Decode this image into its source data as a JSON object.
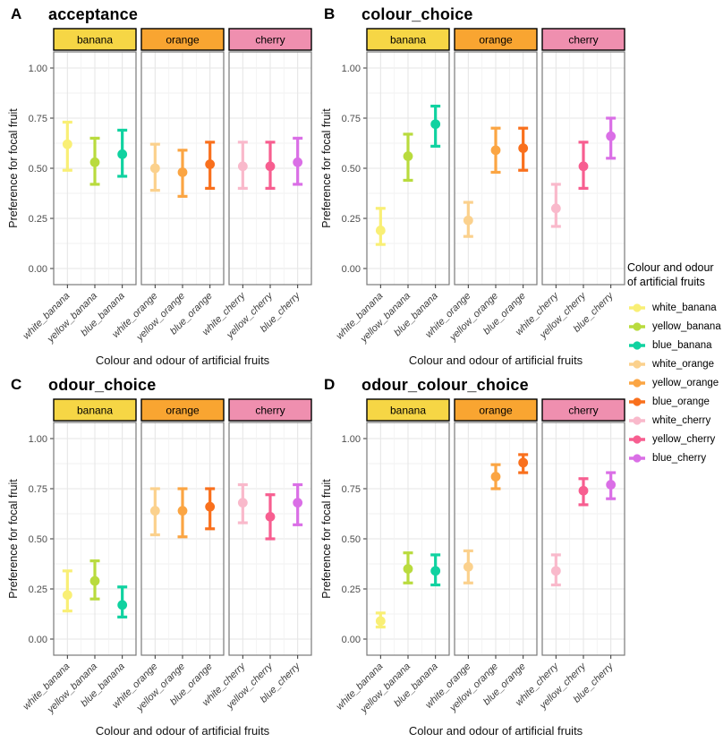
{
  "figure": {
    "xlabel": "Colour and odour of artificial fruits",
    "ylabel": "Preference for focal fruit",
    "facets": [
      "banana",
      "orange",
      "cherry"
    ],
    "facet_fills": {
      "banana": "#F6D645",
      "orange": "#F9A531",
      "cherry": "#EF8FAF"
    },
    "categories": {
      "banana": [
        "white_banana",
        "yellow_banana",
        "blue_banana"
      ],
      "orange": [
        "white_orange",
        "yellow_orange",
        "blue_orange"
      ],
      "cherry": [
        "white_cherry",
        "yellow_cherry",
        "blue_cherry"
      ]
    },
    "palette": {
      "white_banana": "#F9EF75",
      "yellow_banana": "#B9DB3E",
      "blue_banana": "#10D2A0",
      "white_orange": "#FBD18D",
      "yellow_orange": "#FBA543",
      "blue_orange": "#F9701D",
      "white_cherry": "#F9B9CB",
      "yellow_cherry": "#F75E90",
      "blue_cherry": "#DA6FE6"
    },
    "ytick_labels": [
      "0.00",
      "0.25",
      "0.50",
      "0.75",
      "1.00"
    ],
    "ytick_values": [
      0,
      0.25,
      0.5,
      0.75,
      1
    ]
  },
  "chart_data": [
    {
      "type": "pointrange",
      "letter": "A",
      "title": "acceptance",
      "xlabel": "Colour and odour of artificial fruits",
      "ylabel": "Preference for focal fruit",
      "ylim": [
        0,
        1
      ],
      "yticks": [
        "0.00",
        "0.25",
        "0.50",
        "0.75",
        "1.00"
      ],
      "facets": [
        "banana",
        "orange",
        "cherry"
      ],
      "points": [
        {
          "facet": "banana",
          "x": "white_banana",
          "y": 0.62,
          "ymin": 0.49,
          "ymax": 0.73
        },
        {
          "facet": "banana",
          "x": "yellow_banana",
          "y": 0.53,
          "ymin": 0.42,
          "ymax": 0.65
        },
        {
          "facet": "banana",
          "x": "blue_banana",
          "y": 0.57,
          "ymin": 0.46,
          "ymax": 0.69
        },
        {
          "facet": "orange",
          "x": "white_orange",
          "y": 0.5,
          "ymin": 0.39,
          "ymax": 0.62
        },
        {
          "facet": "orange",
          "x": "yellow_orange",
          "y": 0.48,
          "ymin": 0.36,
          "ymax": 0.59
        },
        {
          "facet": "orange",
          "x": "blue_orange",
          "y": 0.52,
          "ymin": 0.4,
          "ymax": 0.63
        },
        {
          "facet": "cherry",
          "x": "white_cherry",
          "y": 0.51,
          "ymin": 0.4,
          "ymax": 0.63
        },
        {
          "facet": "cherry",
          "x": "yellow_cherry",
          "y": 0.51,
          "ymin": 0.4,
          "ymax": 0.63
        },
        {
          "facet": "cherry",
          "x": "blue_cherry",
          "y": 0.53,
          "ymin": 0.42,
          "ymax": 0.65
        }
      ]
    },
    {
      "type": "pointrange",
      "letter": "B",
      "title": "colour_choice",
      "xlabel": "Colour and odour of artificial fruits",
      "ylabel": "Preference for focal fruit",
      "ylim": [
        0,
        1
      ],
      "yticks": [
        "0.00",
        "0.25",
        "0.50",
        "0.75",
        "1.00"
      ],
      "facets": [
        "banana",
        "orange",
        "cherry"
      ],
      "points": [
        {
          "facet": "banana",
          "x": "white_banana",
          "y": 0.19,
          "ymin": 0.12,
          "ymax": 0.3
        },
        {
          "facet": "banana",
          "x": "yellow_banana",
          "y": 0.56,
          "ymin": 0.44,
          "ymax": 0.67
        },
        {
          "facet": "banana",
          "x": "blue_banana",
          "y": 0.72,
          "ymin": 0.61,
          "ymax": 0.81
        },
        {
          "facet": "orange",
          "x": "white_orange",
          "y": 0.24,
          "ymin": 0.16,
          "ymax": 0.33
        },
        {
          "facet": "orange",
          "x": "yellow_orange",
          "y": 0.59,
          "ymin": 0.48,
          "ymax": 0.7
        },
        {
          "facet": "orange",
          "x": "blue_orange",
          "y": 0.6,
          "ymin": 0.49,
          "ymax": 0.7
        },
        {
          "facet": "cherry",
          "x": "white_cherry",
          "y": 0.3,
          "ymin": 0.21,
          "ymax": 0.42
        },
        {
          "facet": "cherry",
          "x": "yellow_cherry",
          "y": 0.51,
          "ymin": 0.4,
          "ymax": 0.63
        },
        {
          "facet": "cherry",
          "x": "blue_cherry",
          "y": 0.66,
          "ymin": 0.55,
          "ymax": 0.75
        }
      ]
    },
    {
      "type": "pointrange",
      "letter": "C",
      "title": "odour_choice",
      "xlabel": "Colour and odour of artificial fruits",
      "ylabel": "Preference for focal fruit",
      "ylim": [
        0,
        1
      ],
      "yticks": [
        "0.00",
        "0.25",
        "0.50",
        "0.75",
        "1.00"
      ],
      "facets": [
        "banana",
        "orange",
        "cherry"
      ],
      "points": [
        {
          "facet": "banana",
          "x": "white_banana",
          "y": 0.22,
          "ymin": 0.14,
          "ymax": 0.34
        },
        {
          "facet": "banana",
          "x": "yellow_banana",
          "y": 0.29,
          "ymin": 0.2,
          "ymax": 0.39
        },
        {
          "facet": "banana",
          "x": "blue_banana",
          "y": 0.17,
          "ymin": 0.11,
          "ymax": 0.26
        },
        {
          "facet": "orange",
          "x": "white_orange",
          "y": 0.64,
          "ymin": 0.52,
          "ymax": 0.75
        },
        {
          "facet": "orange",
          "x": "yellow_orange",
          "y": 0.64,
          "ymin": 0.51,
          "ymax": 0.75
        },
        {
          "facet": "orange",
          "x": "blue_orange",
          "y": 0.66,
          "ymin": 0.55,
          "ymax": 0.75
        },
        {
          "facet": "cherry",
          "x": "white_cherry",
          "y": 0.68,
          "ymin": 0.58,
          "ymax": 0.77
        },
        {
          "facet": "cherry",
          "x": "yellow_cherry",
          "y": 0.61,
          "ymin": 0.5,
          "ymax": 0.72
        },
        {
          "facet": "cherry",
          "x": "blue_cherry",
          "y": 0.68,
          "ymin": 0.57,
          "ymax": 0.77
        }
      ]
    },
    {
      "type": "pointrange",
      "letter": "D",
      "title": "odour_colour_choice",
      "xlabel": "Colour and odour of artificial fruits",
      "ylabel": "Preference for focal fruit",
      "ylim": [
        0,
        1
      ],
      "yticks": [
        "0.00",
        "0.25",
        "0.50",
        "0.75",
        "1.00"
      ],
      "facets": [
        "banana",
        "orange",
        "cherry"
      ],
      "points": [
        {
          "facet": "banana",
          "x": "white_banana",
          "y": 0.09,
          "ymin": 0.06,
          "ymax": 0.13
        },
        {
          "facet": "banana",
          "x": "yellow_banana",
          "y": 0.35,
          "ymin": 0.28,
          "ymax": 0.43
        },
        {
          "facet": "banana",
          "x": "blue_banana",
          "y": 0.34,
          "ymin": 0.27,
          "ymax": 0.42
        },
        {
          "facet": "orange",
          "x": "white_orange",
          "y": 0.36,
          "ymin": 0.28,
          "ymax": 0.44
        },
        {
          "facet": "orange",
          "x": "yellow_orange",
          "y": 0.81,
          "ymin": 0.75,
          "ymax": 0.87
        },
        {
          "facet": "orange",
          "x": "blue_orange",
          "y": 0.88,
          "ymin": 0.83,
          "ymax": 0.92
        },
        {
          "facet": "cherry",
          "x": "white_cherry",
          "y": 0.34,
          "ymin": 0.27,
          "ymax": 0.42
        },
        {
          "facet": "cherry",
          "x": "yellow_cherry",
          "y": 0.74,
          "ymin": 0.67,
          "ymax": 0.8
        },
        {
          "facet": "cherry",
          "x": "blue_cherry",
          "y": 0.77,
          "ymin": 0.7,
          "ymax": 0.83
        }
      ]
    }
  ],
  "legend": {
    "title_line1": "Colour and odour",
    "title_line2": "of artificial fruits",
    "items": [
      "white_banana",
      "yellow_banana",
      "blue_banana",
      "white_orange",
      "yellow_orange",
      "blue_orange",
      "white_cherry",
      "yellow_cherry",
      "blue_cherry"
    ]
  }
}
